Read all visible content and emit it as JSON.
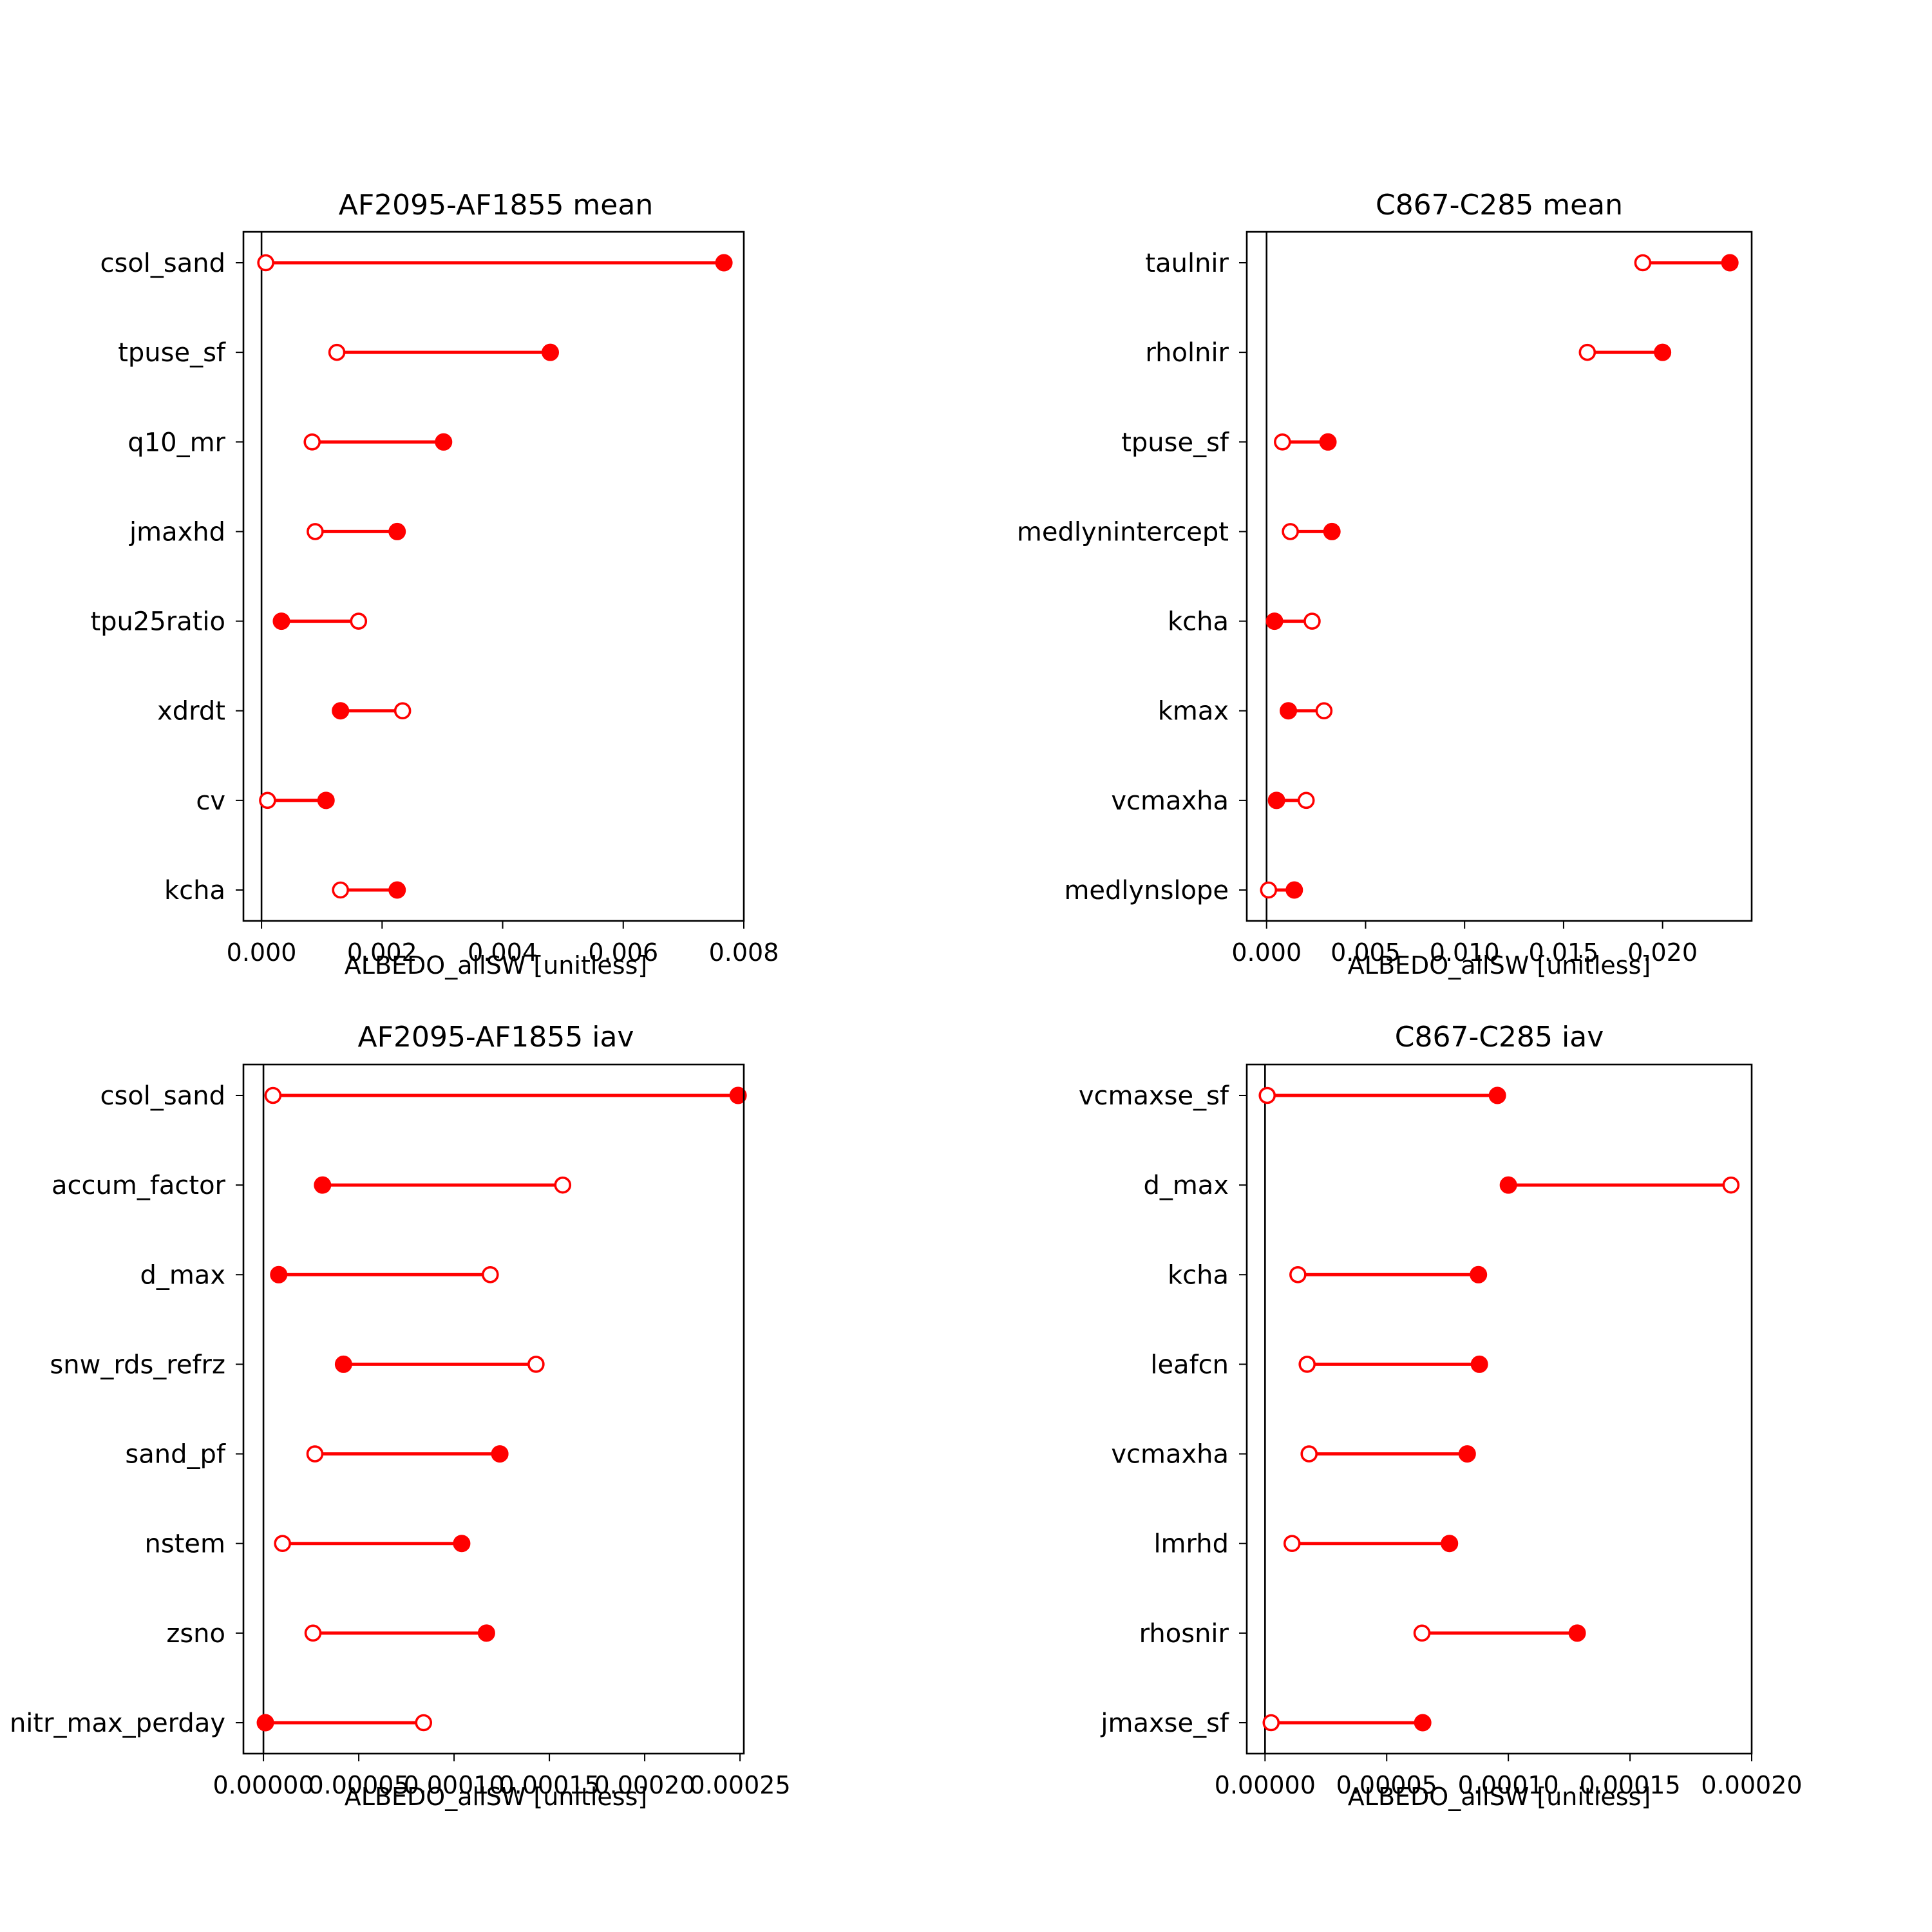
{
  "colors": {
    "series": "#ff0000",
    "axis": "#000000",
    "background": "#ffffff"
  },
  "chart_data": [
    {
      "type": "dumbbell",
      "title": "AF2095-AF1855 mean",
      "xlabel": "ALBEDO_allSW [unitless]",
      "ylabel": "",
      "xlim": [
        -0.0003,
        0.008
      ],
      "xticks": [
        0,
        0.002,
        0.004,
        0.006,
        0.008
      ],
      "xtick_labels": [
        "0.000",
        "0.002",
        "0.004",
        "0.006",
        "0.008"
      ],
      "grid": false,
      "legend": "none",
      "marker_legend": {
        "filled": "solid circle",
        "open": "open circle"
      },
      "categories": [
        "csol_sand",
        "tpuse_sf",
        "q10_mr",
        "jmaxhd",
        "tpu25ratio",
        "xdrdt",
        "cv",
        "kcha"
      ],
      "filled": [
        0.00767,
        0.00479,
        0.00302,
        0.00225,
        0.00033,
        0.00131,
        0.00107,
        0.00225
      ],
      "open": [
        7e-05,
        0.00125,
        0.00084,
        0.00089,
        0.00161,
        0.00234,
        0.0001,
        0.00131
      ]
    },
    {
      "type": "dumbbell",
      "title": "C867-C285 mean",
      "xlabel": "ALBEDO_allSW [unitless]",
      "ylabel": "",
      "xlim": [
        -0.001,
        0.0245
      ],
      "xticks": [
        0,
        0.005,
        0.01,
        0.015,
        0.02
      ],
      "xtick_labels": [
        "0.000",
        "0.005",
        "0.010",
        "0.015",
        "0.020"
      ],
      "grid": false,
      "legend": "none",
      "categories": [
        "taulnir",
        "rholnir",
        "tpuse_sf",
        "medlynintercept",
        "kcha",
        "kmax",
        "vcmaxha",
        "medlynslope"
      ],
      "filled": [
        0.0234,
        0.02,
        0.0031,
        0.0033,
        0.0004,
        0.0011,
        0.0005,
        0.0014
      ],
      "open": [
        0.019,
        0.0162,
        0.0008,
        0.0012,
        0.0023,
        0.0029,
        0.002,
        0.0001
      ]
    },
    {
      "type": "dumbbell",
      "title": "AF2095-AF1855 iav",
      "xlabel": "ALBEDO_allSW [unitless]",
      "ylabel": "",
      "xlim": [
        -1.05e-05,
        0.000252
      ],
      "xticks": [
        0,
        5e-05,
        0.0001,
        0.00015,
        0.0002,
        0.00025
      ],
      "xtick_labels": [
        "0.00000",
        "0.00005",
        "0.00010",
        "0.00015",
        "0.00020",
        "0.00025"
      ],
      "grid": false,
      "legend": "none",
      "categories": [
        "csol_sand",
        "accum_factor",
        "d_max",
        "snw_rds_refrz",
        "sand_pf",
        "nstem",
        "zsno",
        "nitr_max_perday"
      ],
      "filled": [
        0.000249,
        3.1e-05,
        8e-06,
        4.2e-05,
        0.000124,
        0.000104,
        0.000117,
        1e-06
      ],
      "open": [
        5e-06,
        0.000157,
        0.000119,
        0.000143,
        2.7e-05,
        1e-05,
        2.6e-05,
        8.4e-05
      ]
    },
    {
      "type": "dumbbell",
      "title": "C867-C285 iav",
      "xlabel": "ALBEDO_allSW [unitless]",
      "ylabel": "",
      "xlim": [
        -7.5e-06,
        0.0002
      ],
      "xticks": [
        0,
        5e-05,
        0.0001,
        0.00015,
        0.0002
      ],
      "xtick_labels": [
        "0.00000",
        "0.00005",
        "0.00010",
        "0.00015",
        "0.00020"
      ],
      "grid": false,
      "legend": "none",
      "categories": [
        "vcmaxse_sf",
        "d_max",
        "kcha",
        "leafcn",
        "vcmaxha",
        "lmrhd",
        "rhosnir",
        "jmaxse_sf"
      ],
      "filled": [
        9.55e-05,
        0.0001,
        8.77e-05,
        8.81e-05,
        8.31e-05,
        7.58e-05,
        0.0001283,
        6.48e-05
      ],
      "open": [
        9e-07,
        0.0001915,
        1.35e-05,
        1.73e-05,
        1.81e-05,
        1.11e-05,
        6.45e-05,
        2.5e-06
      ]
    }
  ]
}
